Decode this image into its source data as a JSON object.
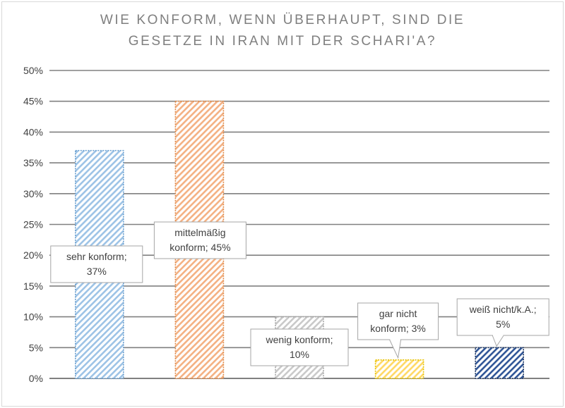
{
  "chart_data": {
    "type": "bar",
    "title_lines": [
      "WIE KONFORM, WENN ÜBERHAUPT, SIND DIE",
      "GESETZE IN IRAN MIT DER SCHARI'A?"
    ],
    "categories": [
      "sehr konform",
      "mittelmäßig konform",
      "wenig konform",
      "gar nicht konform",
      "weiß nicht/k.A."
    ],
    "values": [
      37,
      45,
      10,
      3,
      5
    ],
    "unit": "%",
    "ylim": [
      0,
      50
    ],
    "yticks": [
      "0%",
      "5%",
      "10%",
      "15%",
      "20%",
      "25%",
      "30%",
      "35%",
      "40%",
      "45%",
      "50%"
    ],
    "grid": true,
    "legend": "none",
    "data_labels": [
      [
        "sehr konform;",
        "37%"
      ],
      [
        "mittelmäßig",
        "konform; 45%"
      ],
      [
        "wenig konform;",
        "10%"
      ],
      [
        "gar nicht",
        "konform; 3%"
      ],
      [
        "weiß nicht/k.A.;",
        "5%"
      ]
    ],
    "colors": [
      "#9dc3e6",
      "#f4b183",
      "#c9c9c9",
      "#ffd966",
      "#2f5597"
    ],
    "stroke_colors": [
      "#6a9fcf",
      "#e08a4a",
      "#a6a6a6",
      "#e6c100",
      "#1f3864"
    ]
  }
}
